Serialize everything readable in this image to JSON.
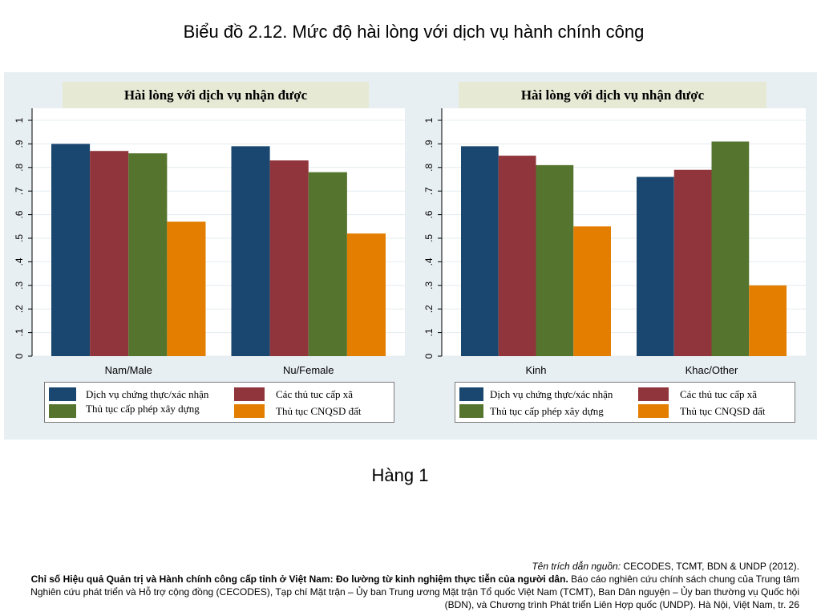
{
  "slide": {
    "title": "Biểu đồ 2.12. Mức độ hài lòng với dịch vụ hành chính công",
    "caption": "Hàng 1"
  },
  "colors": {
    "panel_background": "#e8eff3",
    "subtitle_box": "#e6ead5",
    "gridline": "#e3ecef"
  },
  "chart_data": [
    {
      "type": "bar",
      "title": "Hài lòng với dịch vụ nhận được",
      "categories": [
        "Nam/Male",
        "Nu/Female"
      ],
      "series": [
        {
          "name": "Dịch vụ chứng thực/xác nhận",
          "values": [
            0.9,
            0.89
          ],
          "color": "#1a476f"
        },
        {
          "name": "Các thủ tuc cấp xã",
          "values": [
            0.87,
            0.83
          ],
          "color": "#90353b"
        },
        {
          "name": "Thủ tục cấp phép xây dựng",
          "values": [
            0.86,
            0.78
          ],
          "color": "#55752f"
        },
        {
          "name": "Thủ tục CNQSD đất",
          "values": [
            0.57,
            0.52
          ],
          "color": "#e37e00"
        }
      ],
      "ylim": [
        0,
        1
      ],
      "yticks": [
        0,
        0.1,
        0.2,
        0.3,
        0.4,
        0.5,
        0.6,
        0.7,
        0.8,
        0.9,
        1
      ],
      "ytick_labels": [
        "0",
        ".1",
        ".2",
        ".3",
        ".4",
        ".5",
        ".6",
        ".7",
        ".8",
        ".9",
        "1"
      ],
      "grid": true,
      "legend": "bottom"
    },
    {
      "type": "bar",
      "title": "Hài lòng với dịch vụ nhận được",
      "categories": [
        "Kinh",
        "Khac/Other"
      ],
      "series": [
        {
          "name": "Dịch vụ chứng thực/xác nhận",
          "values": [
            0.89,
            0.76
          ],
          "color": "#1a476f"
        },
        {
          "name": "Các thủ tuc cấp xã",
          "values": [
            0.85,
            0.79
          ],
          "color": "#90353b"
        },
        {
          "name": "Thủ tục cấp phép xây dựng",
          "values": [
            0.81,
            0.91
          ],
          "color": "#55752f"
        },
        {
          "name": "Thủ tục CNQSD đất",
          "values": [
            0.55,
            0.3
          ],
          "color": "#e37e00"
        }
      ],
      "ylim": [
        0,
        1
      ],
      "yticks": [
        0,
        0.1,
        0.2,
        0.3,
        0.4,
        0.5,
        0.6,
        0.7,
        0.8,
        0.9,
        1
      ],
      "ytick_labels": [
        "0",
        ".1",
        ".2",
        ".3",
        ".4",
        ".5",
        ".6",
        ".7",
        ".8",
        ".9",
        "1"
      ],
      "grid": true,
      "legend": "bottom"
    }
  ],
  "citation": {
    "label": "Tên trích dẫn nguồn:",
    "source": " CECODES, TCMT, BDN & UNDP (2012).",
    "report_title": "Chỉ số Hiệu quả Quản trị và Hành chính công cấp tỉnh ở Việt Nam: Đo lường từ kinh nghiệm thực tiễn của người dân.",
    "description": " Báo cáo nghiên cứu chính sách chung của Trung tâm Nghiên cứu phát triển và Hỗ trợ cộng đồng (CECODES), Tạp chí Mặt trận – Ủy ban Trung ương Mặt trận Tổ quốc Việt Nam (TCMT), Ban Dân nguyện – Ủy ban thường vụ Quốc hội (BDN), và Chương trình Phát triển Liên Hợp quốc (UNDP). Hà Nội, Việt Nam, tr. 26"
  }
}
